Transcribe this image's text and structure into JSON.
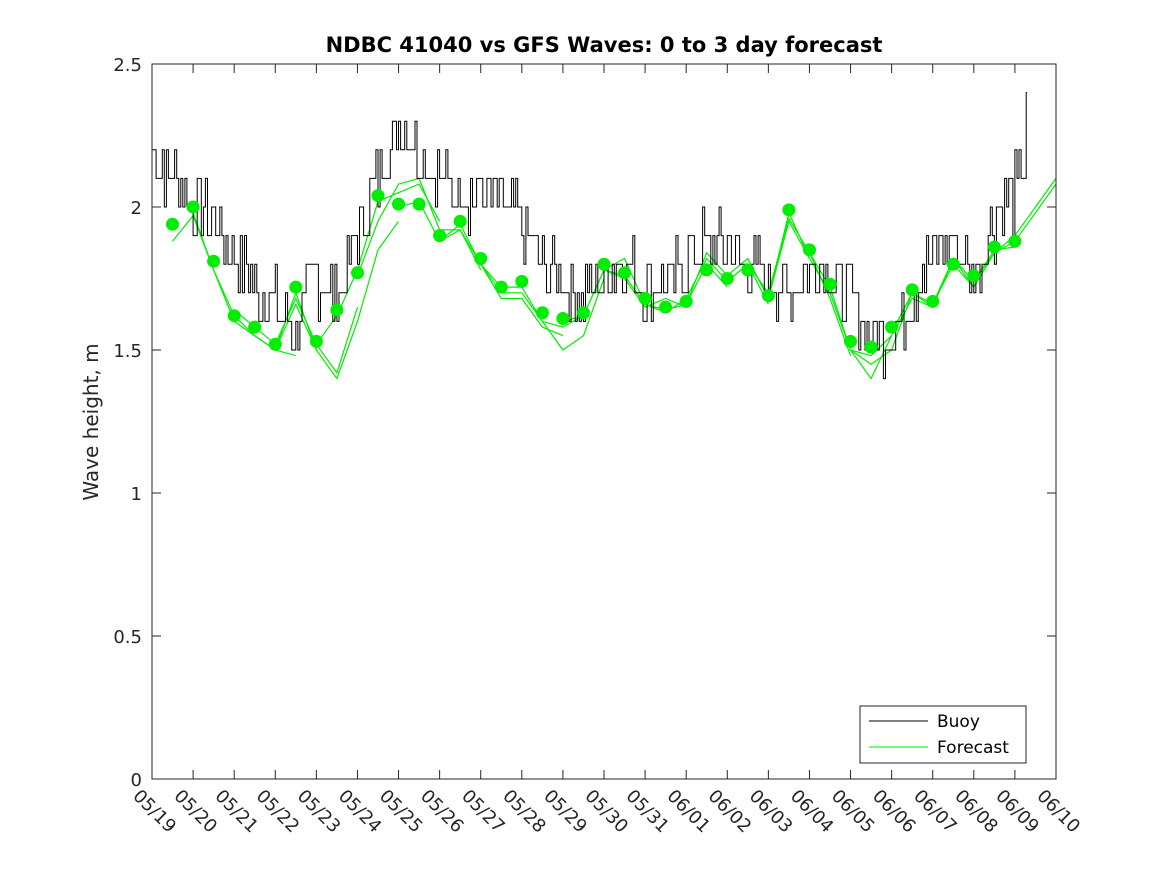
{
  "chart_data": {
    "type": "line",
    "title": "NDBC 41040 vs GFS Waves: 0 to 3 day forecast",
    "xlabel": "",
    "ylabel": "Wave height, m",
    "x_axis": {
      "start_date": "2024-05-19",
      "end_date": "2024-06-10",
      "tick_labels": [
        "05/19",
        "05/20",
        "05/21",
        "05/22",
        "05/23",
        "05/24",
        "05/25",
        "05/26",
        "05/27",
        "05/28",
        "05/29",
        "05/30",
        "05/31",
        "06/01",
        "06/02",
        "06/03",
        "06/04",
        "06/05",
        "06/06",
        "06/07",
        "06/08",
        "06/09",
        "06/10"
      ]
    },
    "ylim": [
      0,
      2.5
    ],
    "y_ticks": [
      0,
      0.5,
      1,
      1.5,
      2,
      2.5
    ],
    "y_tick_labels": [
      "0",
      "0.5",
      "1",
      "1.5",
      "2",
      "2.5"
    ],
    "grid": false,
    "legend": {
      "position": "bottom-right",
      "entries": [
        "Buoy",
        "Forecast"
      ]
    },
    "colors": {
      "buoy": "#000000",
      "forecast": "#00ee00",
      "axes": "#262626"
    },
    "buoy": {
      "name": "Buoy",
      "x": [
        "2024-05-19 00:00",
        "2024-05-19 12:00",
        "2024-05-20 00:00",
        "2024-05-20 12:00",
        "2024-05-21 00:00",
        "2024-05-21 12:00",
        "2024-05-22 00:00",
        "2024-05-22 12:00",
        "2024-05-23 00:00",
        "2024-05-23 12:00",
        "2024-05-24 00:00",
        "2024-05-24 12:00",
        "2024-05-25 00:00",
        "2024-05-25 12:00",
        "2024-05-26 00:00",
        "2024-05-26 12:00",
        "2024-05-27 00:00",
        "2024-05-27 12:00",
        "2024-05-28 00:00",
        "2024-05-28 12:00",
        "2024-05-29 00:00",
        "2024-05-29 12:00",
        "2024-05-30 00:00",
        "2024-05-30 12:00",
        "2024-05-31 00:00",
        "2024-05-31 12:00",
        "2024-06-01 00:00",
        "2024-06-01 12:00",
        "2024-06-02 00:00",
        "2024-06-02 12:00",
        "2024-06-03 00:00",
        "2024-06-03 12:00",
        "2024-06-04 00:00",
        "2024-06-04 12:00",
        "2024-06-05 00:00",
        "2024-06-05 12:00",
        "2024-06-06 00:00",
        "2024-06-06 12:00",
        "2024-06-07 00:00",
        "2024-06-07 12:00",
        "2024-06-08 00:00",
        "2024-06-08 12:00",
        "2024-06-09 00:00",
        "2024-06-09 06:00",
        "2024-06-09 07:12"
      ],
      "values": [
        2.2,
        2.1,
        2.0,
        1.95,
        1.85,
        1.72,
        1.65,
        1.58,
        1.75,
        1.68,
        1.9,
        2.1,
        2.3,
        2.2,
        2.1,
        2.05,
        2.05,
        2.0,
        1.95,
        1.8,
        1.72,
        1.7,
        1.75,
        1.8,
        1.72,
        1.72,
        1.82,
        1.88,
        1.85,
        1.8,
        1.75,
        1.72,
        1.8,
        1.75,
        1.7,
        1.55,
        1.55,
        1.7,
        1.85,
        1.88,
        1.75,
        1.95,
        2.05,
        2.15,
        2.4
      ]
    },
    "forecast_markers": {
      "name": "Forecast",
      "x": [
        "2024-05-19 12:00",
        "2024-05-20 00:00",
        "2024-05-20 12:00",
        "2024-05-21 00:00",
        "2024-05-21 12:00",
        "2024-05-22 00:00",
        "2024-05-22 12:00",
        "2024-05-23 00:00",
        "2024-05-23 12:00",
        "2024-05-24 00:00",
        "2024-05-24 12:00",
        "2024-05-25 00:00",
        "2024-05-25 12:00",
        "2024-05-26 00:00",
        "2024-05-26 12:00",
        "2024-05-27 00:00",
        "2024-05-27 12:00",
        "2024-05-28 00:00",
        "2024-05-28 12:00",
        "2024-05-29 00:00",
        "2024-05-29 12:00",
        "2024-05-30 00:00",
        "2024-05-30 12:00",
        "2024-05-31 00:00",
        "2024-05-31 12:00",
        "2024-06-01 00:00",
        "2024-06-01 12:00",
        "2024-06-02 00:00",
        "2024-06-02 12:00",
        "2024-06-03 00:00",
        "2024-06-03 12:00",
        "2024-06-04 00:00",
        "2024-06-04 12:00",
        "2024-06-05 00:00",
        "2024-06-05 12:00",
        "2024-06-06 00:00",
        "2024-06-06 12:00",
        "2024-06-07 00:00",
        "2024-06-07 12:00",
        "2024-06-08 00:00",
        "2024-06-08 12:00",
        "2024-06-09 00:00"
      ],
      "values": [
        1.94,
        2.0,
        1.81,
        1.62,
        1.58,
        1.52,
        1.72,
        1.53,
        1.64,
        1.77,
        2.04,
        2.01,
        2.01,
        1.9,
        1.95,
        1.82,
        1.72,
        1.74,
        1.63,
        1.61,
        1.63,
        1.8,
        1.77,
        1.68,
        1.65,
        1.67,
        1.78,
        1.75,
        1.78,
        1.69,
        1.99,
        1.85,
        1.73,
        1.53,
        1.51,
        1.58,
        1.71,
        1.67,
        1.8,
        1.76,
        1.86,
        1.88
      ]
    },
    "forecast_runs": [
      {
        "x": [
          "2024-05-19 12:00",
          "2024-05-20 00:00",
          "2024-05-20 12:00",
          "2024-05-21 00:00",
          "2024-05-21 12:00",
          "2024-05-22 00:00",
          "2024-05-22 12:00"
        ],
        "values": [
          1.88,
          1.97,
          1.78,
          1.6,
          1.55,
          1.5,
          1.48
        ]
      },
      {
        "x": [
          "2024-05-20 00:00",
          "2024-05-20 12:00",
          "2024-05-21 00:00",
          "2024-05-21 12:00",
          "2024-05-22 00:00",
          "2024-05-22 12:00",
          "2024-05-23 00:00"
        ],
        "values": [
          1.98,
          1.78,
          1.62,
          1.55,
          1.5,
          1.66,
          1.5
        ]
      },
      {
        "x": [
          "2024-05-21 00:00",
          "2024-05-21 12:00",
          "2024-05-22 00:00",
          "2024-05-22 12:00",
          "2024-05-23 00:00",
          "2024-05-23 12:00",
          "2024-05-24 00:00"
        ],
        "values": [
          1.64,
          1.58,
          1.52,
          1.68,
          1.52,
          1.42,
          1.65
        ]
      },
      {
        "x": [
          "2024-05-22 00:00",
          "2024-05-22 12:00",
          "2024-05-23 00:00",
          "2024-05-23 12:00",
          "2024-05-24 00:00",
          "2024-05-24 12:00",
          "2024-05-25 00:00"
        ],
        "values": [
          1.5,
          1.7,
          1.5,
          1.4,
          1.6,
          1.85,
          1.95
        ]
      },
      {
        "x": [
          "2024-05-23 00:00",
          "2024-05-23 12:00",
          "2024-05-24 00:00",
          "2024-05-24 12:00",
          "2024-05-25 00:00",
          "2024-05-25 12:00",
          "2024-05-26 00:00"
        ],
        "values": [
          1.52,
          1.62,
          1.78,
          2.02,
          2.05,
          2.08,
          1.95
        ]
      },
      {
        "x": [
          "2024-05-24 00:00",
          "2024-05-24 12:00",
          "2024-05-25 00:00",
          "2024-05-25 12:00",
          "2024-05-26 00:00",
          "2024-05-26 12:00",
          "2024-05-27 00:00"
        ],
        "values": [
          1.76,
          1.95,
          2.08,
          2.1,
          1.92,
          1.92,
          1.78
        ]
      },
      {
        "x": [
          "2024-05-25 00:00",
          "2024-05-25 12:00",
          "2024-05-26 00:00",
          "2024-05-26 12:00",
          "2024-05-27 00:00",
          "2024-05-27 12:00",
          "2024-05-28 00:00"
        ],
        "values": [
          2.0,
          2.02,
          1.88,
          1.94,
          1.8,
          1.7,
          1.7
        ]
      },
      {
        "x": [
          "2024-05-26 00:00",
          "2024-05-26 12:00",
          "2024-05-27 00:00",
          "2024-05-27 12:00",
          "2024-05-28 00:00",
          "2024-05-28 12:00",
          "2024-05-29 00:00"
        ],
        "values": [
          1.88,
          1.92,
          1.8,
          1.68,
          1.68,
          1.58,
          1.55
        ]
      },
      {
        "x": [
          "2024-05-27 00:00",
          "2024-05-27 12:00",
          "2024-05-28 00:00",
          "2024-05-28 12:00",
          "2024-05-29 00:00",
          "2024-05-29 12:00",
          "2024-05-30 00:00"
        ],
        "values": [
          1.8,
          1.72,
          1.72,
          1.6,
          1.5,
          1.55,
          1.75
        ]
      },
      {
        "x": [
          "2024-05-28 00:00",
          "2024-05-28 12:00",
          "2024-05-29 00:00",
          "2024-05-29 12:00",
          "2024-05-30 00:00",
          "2024-05-30 12:00",
          "2024-05-31 00:00"
        ],
        "values": [
          1.7,
          1.6,
          1.58,
          1.62,
          1.78,
          1.82,
          1.66
        ]
      },
      {
        "x": [
          "2024-05-29 00:00",
          "2024-05-29 12:00",
          "2024-05-30 00:00",
          "2024-05-30 12:00",
          "2024-05-31 00:00",
          "2024-05-31 12:00",
          "2024-06-01 00:00"
        ],
        "values": [
          1.6,
          1.62,
          1.78,
          1.75,
          1.65,
          1.68,
          1.65
        ]
      },
      {
        "x": [
          "2024-05-30 00:00",
          "2024-05-30 12:00",
          "2024-05-31 00:00",
          "2024-05-31 12:00",
          "2024-06-01 00:00",
          "2024-06-01 12:00",
          "2024-06-02 00:00"
        ],
        "values": [
          1.78,
          1.76,
          1.66,
          1.64,
          1.66,
          1.8,
          1.72
        ]
      },
      {
        "x": [
          "2024-05-31 00:00",
          "2024-05-31 12:00",
          "2024-06-01 00:00",
          "2024-06-01 12:00",
          "2024-06-02 00:00",
          "2024-06-02 12:00",
          "2024-06-03 00:00"
        ],
        "values": [
          1.66,
          1.63,
          1.68,
          1.82,
          1.74,
          1.8,
          1.66
        ]
      },
      {
        "x": [
          "2024-06-01 00:00",
          "2024-06-01 12:00",
          "2024-06-02 00:00",
          "2024-06-02 12:00",
          "2024-06-03 00:00",
          "2024-06-03 12:00",
          "2024-06-04 00:00"
        ],
        "values": [
          1.66,
          1.84,
          1.76,
          1.82,
          1.68,
          1.98,
          1.82
        ]
      },
      {
        "x": [
          "2024-06-02 00:00",
          "2024-06-02 12:00",
          "2024-06-03 00:00",
          "2024-06-03 12:00",
          "2024-06-04 00:00",
          "2024-06-04 12:00",
          "2024-06-05 00:00"
        ],
        "values": [
          1.74,
          1.8,
          1.7,
          1.96,
          1.84,
          1.68,
          1.48
        ]
      },
      {
        "x": [
          "2024-06-03 00:00",
          "2024-06-03 12:00",
          "2024-06-04 00:00",
          "2024-06-04 12:00",
          "2024-06-05 00:00",
          "2024-06-05 12:00",
          "2024-06-06 00:00"
        ],
        "values": [
          1.68,
          1.95,
          1.82,
          1.7,
          1.5,
          1.4,
          1.55
        ]
      },
      {
        "x": [
          "2024-06-04 00:00",
          "2024-06-04 12:00",
          "2024-06-05 00:00",
          "2024-06-05 12:00",
          "2024-06-06 00:00",
          "2024-06-06 12:00",
          "2024-06-07 00:00"
        ],
        "values": [
          1.84,
          1.72,
          1.5,
          1.45,
          1.5,
          1.7,
          1.65
        ]
      },
      {
        "x": [
          "2024-06-05 00:00",
          "2024-06-05 12:00",
          "2024-06-06 00:00",
          "2024-06-06 12:00",
          "2024-06-07 00:00",
          "2024-06-07 12:00",
          "2024-06-08 00:00"
        ],
        "values": [
          1.5,
          1.48,
          1.55,
          1.68,
          1.65,
          1.82,
          1.72
        ]
      },
      {
        "x": [
          "2024-06-06 00:00",
          "2024-06-06 12:00",
          "2024-06-07 00:00",
          "2024-06-07 12:00",
          "2024-06-08 00:00",
          "2024-06-08 12:00",
          "2024-06-09 00:00"
        ],
        "values": [
          1.56,
          1.7,
          1.66,
          1.82,
          1.74,
          1.85,
          1.86
        ]
      },
      {
        "x": [
          "2024-06-07 00:00",
          "2024-06-07 12:00",
          "2024-06-08 00:00",
          "2024-06-08 12:00",
          "2024-06-09 00:00",
          "2024-06-09 12:00",
          "2024-06-10 00:00"
        ],
        "values": [
          1.66,
          1.8,
          1.72,
          1.84,
          1.88,
          1.98,
          2.08
        ]
      },
      {
        "x": [
          "2024-06-08 00:00",
          "2024-06-08 12:00",
          "2024-06-09 00:00",
          "2024-06-09 12:00",
          "2024-06-10 00:00"
        ],
        "values": [
          1.74,
          1.84,
          1.9,
          2.0,
          2.1
        ]
      }
    ]
  }
}
